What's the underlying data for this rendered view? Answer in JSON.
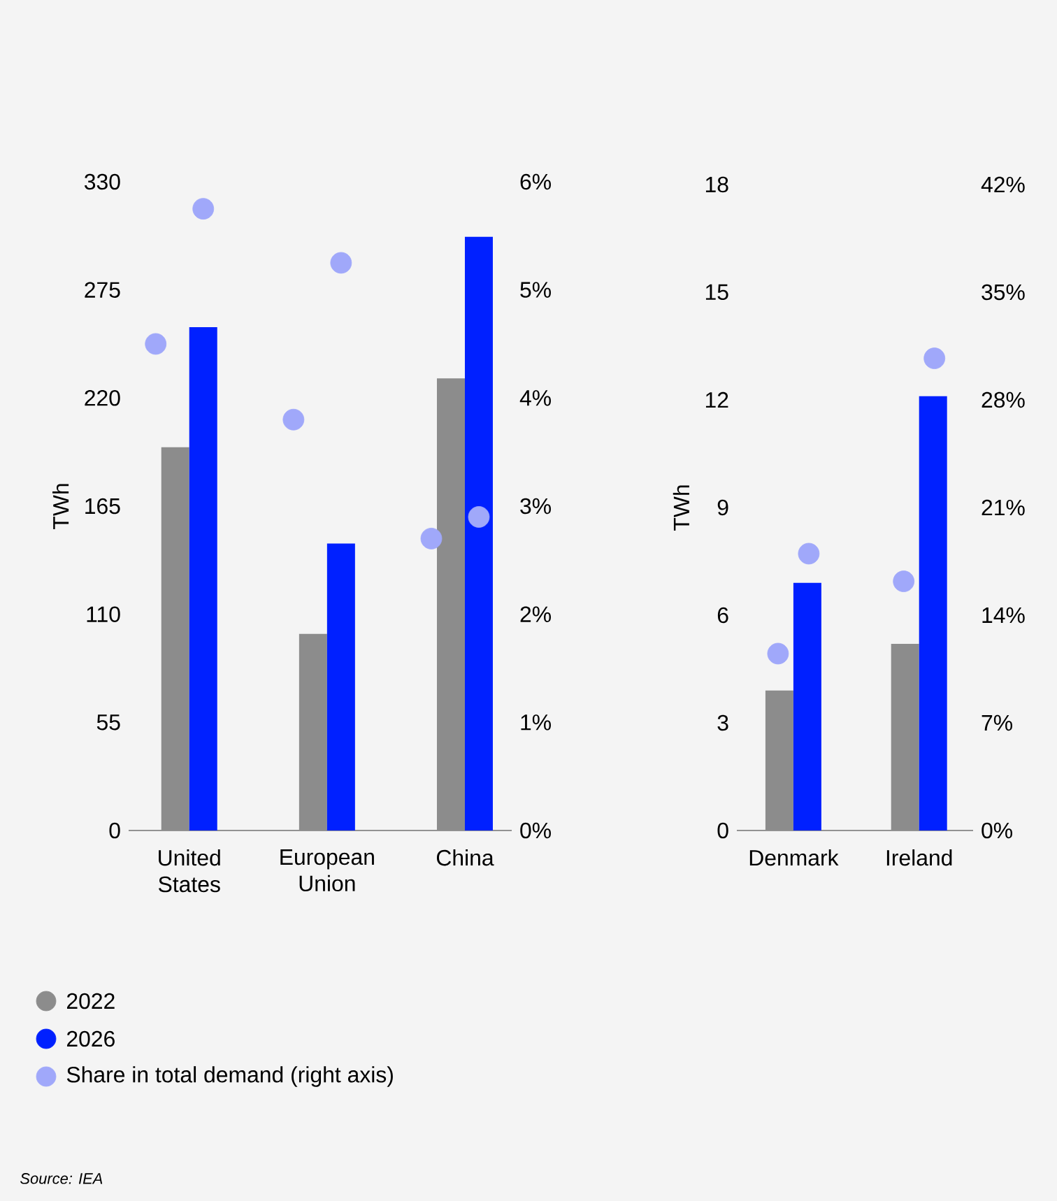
{
  "chart_data": [
    {
      "type": "bar",
      "categories": [
        "United States",
        "European Union",
        "China"
      ],
      "series": [
        {
          "name": "2022",
          "color": "#8c8c8c",
          "values": [
            195,
            100,
            230
          ]
        },
        {
          "name": "2026",
          "color": "#0020ff",
          "values": [
            256,
            146,
            302
          ]
        },
        {
          "name": "Share in total demand (right axis)",
          "type": "scatter",
          "axis": "y2",
          "marker": "circle",
          "color": "#a0a8fa",
          "values": [
            4.5,
            3.8,
            2.7
          ]
        },
        {
          "type": "scatter",
          "axis": "y2",
          "marker": "circle",
          "color": "#a0a8fa",
          "values": [
            5.75,
            5.25,
            2.9
          ]
        }
      ],
      "ylabel": "TWh",
      "ylim": [
        0,
        330
      ],
      "yticks": [
        0,
        55,
        110,
        165,
        220,
        275,
        330
      ],
      "y2lim": [
        0,
        6
      ],
      "y2ticks": [
        {
          "value": 0,
          "label": "0%"
        },
        {
          "value": 1,
          "label": "1%"
        },
        {
          "value": 2,
          "label": "2%"
        },
        {
          "value": 3,
          "label": "3%"
        },
        {
          "value": 4,
          "label": "4%"
        },
        {
          "value": 5,
          "label": "5%"
        },
        {
          "value": 6,
          "label": "6%"
        }
      ],
      "legend": "bottom",
      "annotations": [
        "Source: IEA"
      ]
    },
    {
      "type": "bar",
      "categories": [
        "Denmark",
        "Ireland"
      ],
      "series": [
        {
          "color": "#8c8c8c",
          "values": [
            3.9,
            5.2
          ]
        },
        {
          "color": "#0020ff",
          "values": [
            6.9,
            12.1
          ]
        },
        {
          "type": "scatter",
          "axis": "y2",
          "marker": "circle",
          "color": "#a0a8fa",
          "values": [
            11.5,
            16.2
          ]
        },
        {
          "type": "scatter",
          "axis": "y2",
          "marker": "circle",
          "color": "#a0a8fa",
          "values": [
            18.0,
            30.7
          ]
        }
      ],
      "ylabel": "TWh",
      "ylim": [
        0,
        18
      ],
      "yticks": [
        0,
        3,
        6,
        9,
        12,
        15,
        18
      ],
      "y2lim": [
        0,
        42
      ],
      "y2ticks": [
        {
          "value": 0,
          "label": "0%"
        },
        {
          "value": 7,
          "label": "7%"
        },
        {
          "value": 14,
          "label": "14%"
        },
        {
          "value": 21,
          "label": "21%"
        },
        {
          "value": 28,
          "label": "28%"
        },
        {
          "value": 35,
          "label": "35%"
        },
        {
          "value": 42,
          "label": "42%"
        }
      ]
    }
  ]
}
